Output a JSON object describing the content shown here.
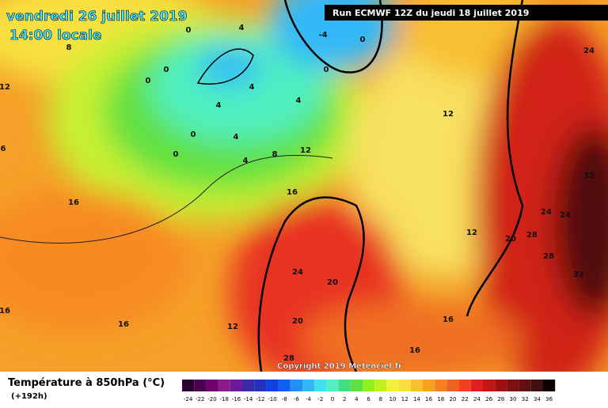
{
  "header": {
    "title": "vendredi 26 juillet 2019",
    "subtitle": "14:00 locale",
    "run": "Run ECMWF 12Z du jeudi 18 juillet 2019"
  },
  "map": {
    "copyright": "Copyright 2019 Meteociel.fr",
    "contour_labels": [
      8,
      0,
      4,
      -4,
      0,
      0,
      0,
      0,
      4,
      4,
      4,
      0,
      4,
      0,
      4,
      8,
      12,
      12,
      16,
      16,
      12,
      6,
      24,
      32,
      24,
      24,
      28,
      28,
      20,
      12,
      32,
      24,
      20,
      20,
      16,
      16,
      12,
      16,
      16,
      28
    ]
  },
  "legend": {
    "title": "Température à 850hPa (°C)",
    "lead": "(+192h)",
    "ticks": [
      -24,
      -22,
      -20,
      -18,
      -16,
      -14,
      -12,
      -10,
      -8,
      -6,
      -4,
      -2,
      0,
      2,
      4,
      6,
      8,
      10,
      12,
      14,
      16,
      18,
      20,
      22,
      24,
      26,
      28,
      30,
      32,
      34,
      36
    ],
    "colors": [
      "#2a0030",
      "#4a0050",
      "#6e006e",
      "#8c1a8c",
      "#6a1a9a",
      "#3a2aa8",
      "#2030c0",
      "#1040e0",
      "#1060f0",
      "#2090f8",
      "#30b8f8",
      "#40e0f0",
      "#50f0c0",
      "#40e080",
      "#60e040",
      "#90f020",
      "#c0f020",
      "#f0f040",
      "#f8e040",
      "#f8c030",
      "#f8a020",
      "#f88020",
      "#f06020",
      "#f04020",
      "#e02020",
      "#c01818",
      "#a01010",
      "#801010",
      "#601010",
      "#401010",
      "#100000"
    ]
  }
}
